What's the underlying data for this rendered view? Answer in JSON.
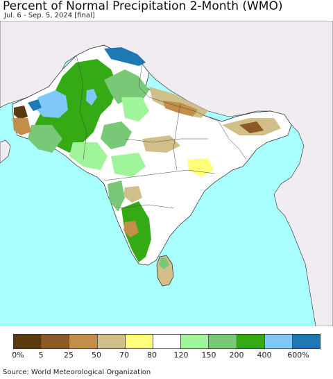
{
  "title": "Percent of Normal Precipitation 2-Month (WMO)",
  "subtitle": "Jul. 6 - Sep. 5, 2024 [final]",
  "legend": {
    "colors": [
      "#5a3b10",
      "#8c5a24",
      "#c28e4a",
      "#d1bf89",
      "#ffff78",
      "#ffffff",
      "#a0f59b",
      "#78c878",
      "#34aa14",
      "#7fc8f8",
      "#1e78b4"
    ],
    "ticks": [
      "0%",
      "5",
      "25",
      "50",
      "70",
      "80",
      "120",
      "150",
      "200",
      "400",
      "600%"
    ]
  },
  "source": "Source: World Meteorological Organization"
}
